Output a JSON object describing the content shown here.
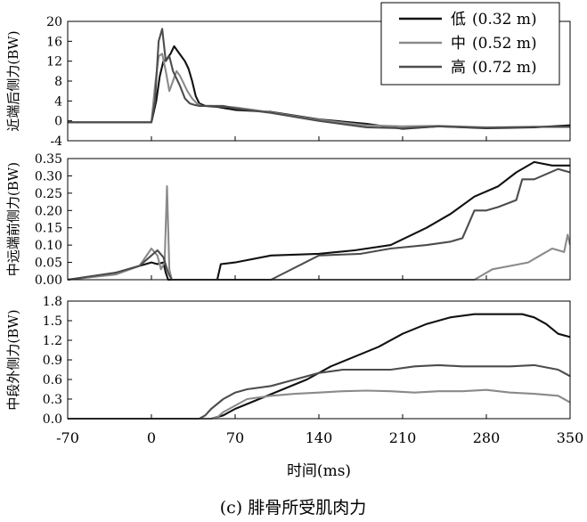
{
  "chart_data": {
    "type": "line",
    "caption": "(c) 腓骨所受肌肉力",
    "xlabel": "时间(ms)",
    "xlim": [
      -70,
      350
    ],
    "xticks": [
      -70,
      0,
      70,
      140,
      210,
      280,
      350
    ],
    "legend": {
      "placement": "top-right",
      "entries": [
        {
          "name": "低",
          "detail": "(0.32 m)",
          "color": "#111111"
        },
        {
          "name": "中",
          "detail": "(0.52 m)",
          "color": "#8a8a8a"
        },
        {
          "name": "高",
          "detail": "(0.72 m)",
          "color": "#4d4d4d"
        }
      ]
    },
    "panels": [
      {
        "ylabel": "近端后侧力(BW)",
        "ylim": [
          -4,
          20
        ],
        "yticks": [
          "20",
          "16",
          "12",
          "8",
          "4",
          "0",
          "-4"
        ],
        "series": [
          {
            "name": "低",
            "color": "#111111",
            "x": [
              -70,
              0,
              4,
              7,
              10,
              13,
              16,
              19,
              22,
              25,
              28,
              31,
              34,
              37,
              40,
              45,
              55,
              70,
              100,
              140,
              180,
              210,
              240,
              280,
              320,
              350
            ],
            "y": [
              -0.3,
              -0.3,
              4,
              9,
              12,
              12.5,
              13.5,
              15,
              14,
              13,
              12,
              10.5,
              8,
              5,
              3.5,
              3,
              2.8,
              2.2,
              1.8,
              0.3,
              -0.6,
              -1.6,
              -1.1,
              -1.5,
              -1.3,
              -0.9
            ]
          },
          {
            "name": "中",
            "color": "#8a8a8a",
            "x": [
              -70,
              0,
              3,
              6,
              9,
              12,
              15,
              18,
              21,
              24,
              27,
              30,
              34,
              38,
              42,
              50,
              60,
              70,
              100,
              140,
              180,
              210,
              240,
              280,
              320,
              350
            ],
            "y": [
              -0.3,
              -0.3,
              7,
              13,
              13.5,
              10,
              6,
              8,
              10,
              9,
              7.5,
              6,
              4.5,
              3.5,
              3,
              3,
              2.9,
              2.7,
              1.7,
              0.2,
              -0.9,
              -1.1,
              -1,
              -1.3,
              -1.2,
              -1.2
            ]
          },
          {
            "name": "高",
            "color": "#4d4d4d",
            "x": [
              -70,
              0,
              3,
              6,
              9,
              12,
              15,
              18,
              21,
              24,
              28,
              32,
              36,
              40,
              50,
              60,
              70,
              100,
              140,
              180,
              210,
              240,
              280,
              320,
              350
            ],
            "y": [
              -0.3,
              -0.3,
              4,
              16,
              18.5,
              12,
              13,
              10,
              8.5,
              7,
              4.5,
              3.5,
              3.2,
              3,
              3,
              3,
              2.5,
              1.6,
              0,
              -1.3,
              -1.5,
              -1.1,
              -1.4,
              -1.2,
              -1.2
            ]
          }
        ]
      },
      {
        "ylabel": "中远端前侧力(BW)",
        "ylim": [
          0,
          0.35
        ],
        "yticks": [
          "0.35",
          "0.30",
          "0.25",
          "0.20",
          "0.15",
          "0.10",
          "0.05",
          "0.00"
        ],
        "series": [
          {
            "name": "低",
            "color": "#111111",
            "x": [
              -70,
              -30,
              0,
              5,
              10,
              12,
              14,
              16,
              55,
              58,
              70,
              100,
              140,
              170,
              200,
              230,
              250,
              270,
              290,
              305,
              320,
              335,
              350
            ],
            "y": [
              0,
              0.02,
              0.05,
              0.045,
              0.05,
              0.02,
              0,
              0,
              0,
              0.045,
              0.05,
              0.07,
              0.075,
              0.085,
              0.1,
              0.15,
              0.19,
              0.24,
              0.27,
              0.31,
              0.34,
              0.33,
              0.33
            ]
          },
          {
            "name": "中",
            "color": "#8a8a8a",
            "x": [
              -70,
              -30,
              -10,
              0,
              5,
              8,
              11,
              13,
              15,
              17,
              19,
              22,
              240,
              260,
              270,
              275,
              285,
              300,
              315,
              325,
              335,
              345,
              348,
              350
            ],
            "y": [
              0,
              0.015,
              0.04,
              0.09,
              0.07,
              0.03,
              0.05,
              0.27,
              0.03,
              0,
              0,
              0,
              0,
              0,
              0,
              0.01,
              0.03,
              0.04,
              0.05,
              0.07,
              0.09,
              0.08,
              0.13,
              0.1
            ]
          },
          {
            "name": "高",
            "color": "#4d4d4d",
            "x": [
              -70,
              -30,
              -10,
              0,
              5,
              10,
              14,
              17,
              20,
              100,
              140,
              175,
              200,
              230,
              250,
              260,
              265,
              270,
              280,
              290,
              305,
              310,
              320,
              340,
              350
            ],
            "y": [
              0,
              0.02,
              0.04,
              0.07,
              0.085,
              0.065,
              0.02,
              0,
              0,
              0,
              0.07,
              0.075,
              0.09,
              0.1,
              0.11,
              0.12,
              0.16,
              0.2,
              0.2,
              0.21,
              0.23,
              0.29,
              0.29,
              0.32,
              0.31
            ]
          }
        ]
      },
      {
        "ylabel": "中段外侧力(BW)",
        "ylim": [
          0,
          1.8
        ],
        "yticks": [
          "1.8",
          "1.5",
          "1.2",
          "0.9",
          "0.6",
          "0.3",
          "0.0"
        ],
        "series": [
          {
            "name": "低",
            "color": "#111111",
            "x": [
              -70,
              50,
              60,
              70,
              90,
              110,
              130,
              150,
              170,
              190,
              210,
              230,
              250,
              270,
              290,
              310,
              320,
              330,
              340,
              350
            ],
            "y": [
              0,
              0,
              0.05,
              0.15,
              0.3,
              0.45,
              0.6,
              0.8,
              0.95,
              1.1,
              1.3,
              1.45,
              1.55,
              1.6,
              1.6,
              1.6,
              1.55,
              1.45,
              1.3,
              1.25
            ]
          },
          {
            "name": "中",
            "color": "#8a8a8a",
            "x": [
              -70,
              50,
              55,
              60,
              80,
              100,
              120,
              140,
              160,
              180,
              200,
              220,
              240,
              260,
              280,
              300,
              320,
              340,
              350
            ],
            "y": [
              0,
              0,
              0.02,
              0.1,
              0.3,
              0.35,
              0.38,
              0.4,
              0.42,
              0.43,
              0.42,
              0.4,
              0.42,
              0.42,
              0.44,
              0.4,
              0.38,
              0.35,
              0.25
            ]
          },
          {
            "name": "高",
            "color": "#4d4d4d",
            "x": [
              -70,
              40,
              45,
              50,
              60,
              70,
              80,
              100,
              120,
              140,
              160,
              180,
              200,
              220,
              240,
              260,
              280,
              300,
              320,
              340,
              350
            ],
            "y": [
              0,
              0,
              0.05,
              0.15,
              0.3,
              0.4,
              0.45,
              0.5,
              0.6,
              0.7,
              0.75,
              0.75,
              0.75,
              0.8,
              0.82,
              0.8,
              0.8,
              0.8,
              0.82,
              0.75,
              0.65
            ]
          }
        ]
      }
    ]
  }
}
